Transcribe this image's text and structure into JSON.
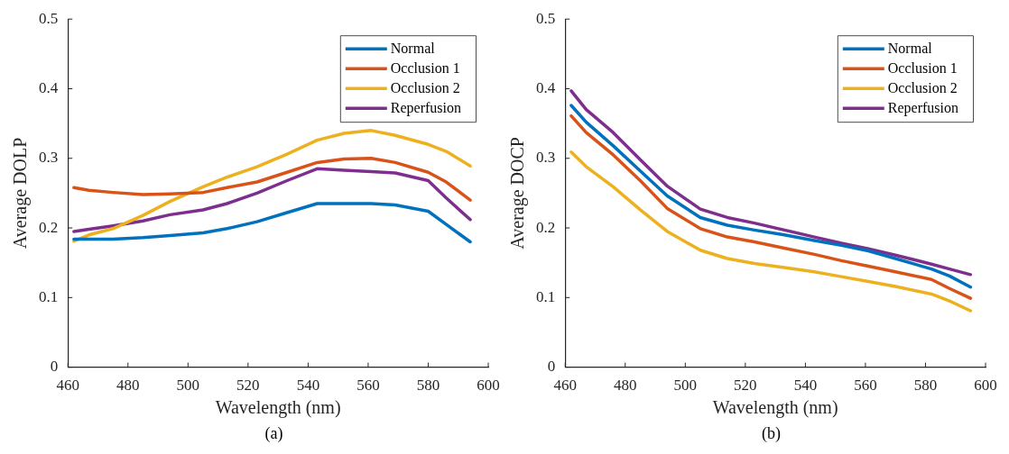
{
  "chart_data": [
    {
      "type": "line",
      "xlabel": "Wavelength (nm)",
      "ylabel": "Average DOLP",
      "annotations": [
        "(a)"
      ],
      "x": [
        462,
        467,
        475,
        485,
        494,
        505,
        513,
        523,
        533,
        543,
        552,
        561,
        569,
        580,
        586,
        594
      ],
      "series": [
        {
          "name": "Normal",
          "color": "#0072bd",
          "values": [
            0.184,
            0.184,
            0.184,
            0.186,
            0.189,
            0.193,
            0.199,
            0.209,
            0.222,
            0.235,
            0.235,
            0.235,
            0.233,
            0.224,
            0.205,
            0.18
          ]
        },
        {
          "name": "Occlusion 1",
          "color": "#d95319",
          "values": [
            0.258,
            0.254,
            0.251,
            0.248,
            0.249,
            0.251,
            0.258,
            0.266,
            0.28,
            0.294,
            0.299,
            0.3,
            0.294,
            0.28,
            0.266,
            0.24
          ]
        },
        {
          "name": "Occlusion 2",
          "color": "#edb120",
          "values": [
            0.181,
            0.19,
            0.199,
            0.218,
            0.238,
            0.259,
            0.273,
            0.288,
            0.306,
            0.326,
            0.336,
            0.34,
            0.333,
            0.32,
            0.31,
            0.289
          ]
        },
        {
          "name": "Reperfusion",
          "color": "#7e2f8e",
          "values": [
            0.195,
            0.198,
            0.203,
            0.21,
            0.219,
            0.226,
            0.235,
            0.25,
            0.268,
            0.285,
            0.283,
            0.281,
            0.279,
            0.268,
            0.243,
            0.212
          ]
        }
      ],
      "xlim": [
        460,
        600
      ],
      "xticks": [
        460,
        480,
        500,
        520,
        540,
        560,
        580,
        600
      ],
      "ylim": [
        0,
        0.5
      ],
      "yticks": [
        0,
        0.1,
        0.2,
        0.3,
        0.4,
        0.5
      ],
      "legend": "top right",
      "grid": false,
      "marker": "none",
      "line_style": "solid"
    },
    {
      "type": "line",
      "xlabel": "Wavelength (nm)",
      "ylabel": "Average DOCP",
      "annotations": [
        "(b)"
      ],
      "x": [
        462,
        467,
        476,
        485,
        494,
        505,
        514,
        523,
        533,
        543,
        552,
        561,
        570,
        582,
        588,
        595
      ],
      "series": [
        {
          "name": "Normal",
          "color": "#0072bd",
          "values": [
            0.376,
            0.352,
            0.318,
            0.282,
            0.246,
            0.215,
            0.204,
            0.197,
            0.19,
            0.182,
            0.175,
            0.167,
            0.156,
            0.141,
            0.131,
            0.115
          ]
        },
        {
          "name": "Occlusion 1",
          "color": "#d95319",
          "values": [
            0.361,
            0.337,
            0.305,
            0.268,
            0.228,
            0.199,
            0.187,
            0.18,
            0.171,
            0.162,
            0.153,
            0.145,
            0.137,
            0.126,
            0.113,
            0.099
          ]
        },
        {
          "name": "Occlusion 2",
          "color": "#edb120",
          "values": [
            0.309,
            0.288,
            0.259,
            0.226,
            0.195,
            0.168,
            0.156,
            0.149,
            0.143,
            0.137,
            0.13,
            0.123,
            0.116,
            0.105,
            0.095,
            0.081
          ]
        },
        {
          "name": "Reperfusion",
          "color": "#7e2f8e",
          "values": [
            0.397,
            0.37,
            0.337,
            0.298,
            0.26,
            0.227,
            0.215,
            0.207,
            0.197,
            0.187,
            0.178,
            0.17,
            0.161,
            0.148,
            0.141,
            0.133
          ]
        }
      ],
      "xlim": [
        460,
        600
      ],
      "xticks": [
        460,
        480,
        500,
        520,
        540,
        560,
        580,
        600
      ],
      "ylim": [
        0,
        0.5
      ],
      "yticks": [
        0,
        0.1,
        0.2,
        0.3,
        0.4,
        0.5
      ],
      "legend": "top right",
      "grid": false,
      "marker": "none",
      "line_style": "solid"
    }
  ]
}
